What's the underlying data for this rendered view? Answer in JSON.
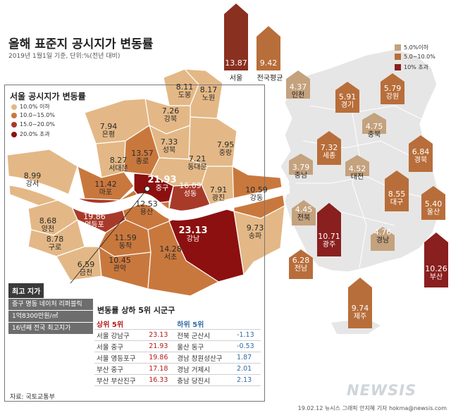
{
  "title": "올해 표준지 공시지가 변동률",
  "subtitle": "2019년 1월1일 기준, 단위:%(전년 대비)",
  "national_legend": [
    {
      "label": "5.0%이하",
      "color": "#c4a27e"
    },
    {
      "label": "5.0~10.0%",
      "color": "#b86e3a"
    },
    {
      "label": "10% 초과",
      "color": "#8a1f1f"
    }
  ],
  "seoul_title": "서울 공시지가 변동률",
  "seoul_legend": [
    {
      "label": "10.0% 이하",
      "color": "#e3b886"
    },
    {
      "label": "10.0~15.0%",
      "color": "#c9783d"
    },
    {
      "label": "15.0~20.0%",
      "color": "#a83a2a"
    },
    {
      "label": "20.0% 초과",
      "color": "#8c1010"
    }
  ],
  "seoul_districts": [
    {
      "name": "도봉",
      "value": "8.11",
      "fill": "#e3b886"
    },
    {
      "name": "노원",
      "value": "8.17",
      "fill": "#e3b886"
    },
    {
      "name": "강북",
      "value": "7.26",
      "fill": "#e3b886"
    },
    {
      "name": "은평",
      "value": "7.94",
      "fill": "#e3b886"
    },
    {
      "name": "성북",
      "value": "7.33",
      "fill": "#e3b886"
    },
    {
      "name": "중랑",
      "value": "7.95",
      "fill": "#e3b886"
    },
    {
      "name": "서대문",
      "value": "8.27",
      "fill": "#e3b886"
    },
    {
      "name": "종로",
      "value": "13.57",
      "fill": "#c9783d"
    },
    {
      "name": "동대문",
      "value": "7.21",
      "fill": "#e3b886"
    },
    {
      "name": "강서",
      "value": "8.99",
      "fill": "#e3b886"
    },
    {
      "name": "마포",
      "value": "11.42",
      "fill": "#c9783d"
    },
    {
      "name": "중구",
      "value": "21.93",
      "fill": "#8c1010"
    },
    {
      "name": "성동",
      "value": "16.09",
      "fill": "#a83a2a"
    },
    {
      "name": "광진",
      "value": "7.91",
      "fill": "#e3b886"
    },
    {
      "name": "강동",
      "value": "10.59",
      "fill": "#c9783d"
    },
    {
      "name": "용산",
      "value": "12.53",
      "fill": "#c9783d"
    },
    {
      "name": "양천",
      "value": "8.68",
      "fill": "#e3b886"
    },
    {
      "name": "영등포",
      "value": "19.86",
      "fill": "#a83a2a"
    },
    {
      "name": "구로",
      "value": "8.78",
      "fill": "#e3b886"
    },
    {
      "name": "동작",
      "value": "11.59",
      "fill": "#c9783d"
    },
    {
      "name": "강남",
      "value": "23.13",
      "fill": "#8c1010"
    },
    {
      "name": "송파",
      "value": "9.73",
      "fill": "#e3b886"
    },
    {
      "name": "금천",
      "value": "6.59",
      "fill": "#e3b886"
    },
    {
      "name": "관악",
      "value": "10.45",
      "fill": "#c9783d"
    },
    {
      "name": "서초",
      "value": "14.28",
      "fill": "#c9783d"
    }
  ],
  "highest": {
    "heading": "최고 지가",
    "lines": [
      "중구 명동 네이처 리퍼블릭",
      "1억8300만원/㎡",
      "16년째 전국 최고지가"
    ]
  },
  "ranking": {
    "title": "변동률 상하 5위 시군구",
    "top_heading": "상위 5위",
    "bottom_heading": "하위 5위",
    "top": [
      {
        "name": "서울 강남구",
        "value": "23.13"
      },
      {
        "name": "서울 중구",
        "value": "21.93"
      },
      {
        "name": "서울 영등포구",
        "value": "19.86"
      },
      {
        "name": "부산 중구",
        "value": "17.18"
      },
      {
        "name": "부산 부산진구",
        "value": "16.33"
      }
    ],
    "bottom": [
      {
        "name": "전북 군산시",
        "value": "-1.13"
      },
      {
        "name": "울산 동구",
        "value": "-0.53"
      },
      {
        "name": "경남 창원성산구",
        "value": "1.87"
      },
      {
        "name": "경남 거제시",
        "value": "2.01"
      },
      {
        "name": "충남 당진시",
        "value": "2.13"
      }
    ]
  },
  "national_bars": [
    {
      "name": "서울",
      "value": "13.87",
      "color": "#8a3020"
    },
    {
      "name": "전국평균",
      "value": "9.42",
      "color": "#b86e3a"
    }
  ],
  "provinces": [
    {
      "name": "인천",
      "value": "4.37",
      "color": "#c4a27e"
    },
    {
      "name": "경기",
      "value": "5.91",
      "color": "#b86e3a"
    },
    {
      "name": "강원",
      "value": "5.79",
      "color": "#b86e3a"
    },
    {
      "name": "충북",
      "value": "4.75",
      "color": "#c4a27e"
    },
    {
      "name": "세종",
      "value": "7.32",
      "color": "#b86e3a"
    },
    {
      "name": "경북",
      "value": "6.84",
      "color": "#b86e3a"
    },
    {
      "name": "충남",
      "value": "3.79",
      "color": "#c4a27e"
    },
    {
      "name": "대전",
      "value": "4.52",
      "color": "#c4a27e"
    },
    {
      "name": "대구",
      "value": "8.55",
      "color": "#b86e3a"
    },
    {
      "name": "울산",
      "value": "5.40",
      "color": "#b86e3a"
    },
    {
      "name": "전북",
      "value": "4.45",
      "color": "#c4a27e"
    },
    {
      "name": "광주",
      "value": "10.71",
      "color": "#8a1f1f"
    },
    {
      "name": "경남",
      "value": "4.76",
      "color": "#c4a27e"
    },
    {
      "name": "전남",
      "value": "6.28",
      "color": "#b86e3a"
    },
    {
      "name": "부산",
      "value": "10.26",
      "color": "#8a1f1f"
    },
    {
      "name": "제주",
      "value": "9.74",
      "color": "#b86e3a"
    }
  ],
  "source": "자료: 국토교통부",
  "credit": "19.02.12 뉴시스 그래픽 안지혜 기자 hokma@newsis.com",
  "logo": "NEWSIS"
}
